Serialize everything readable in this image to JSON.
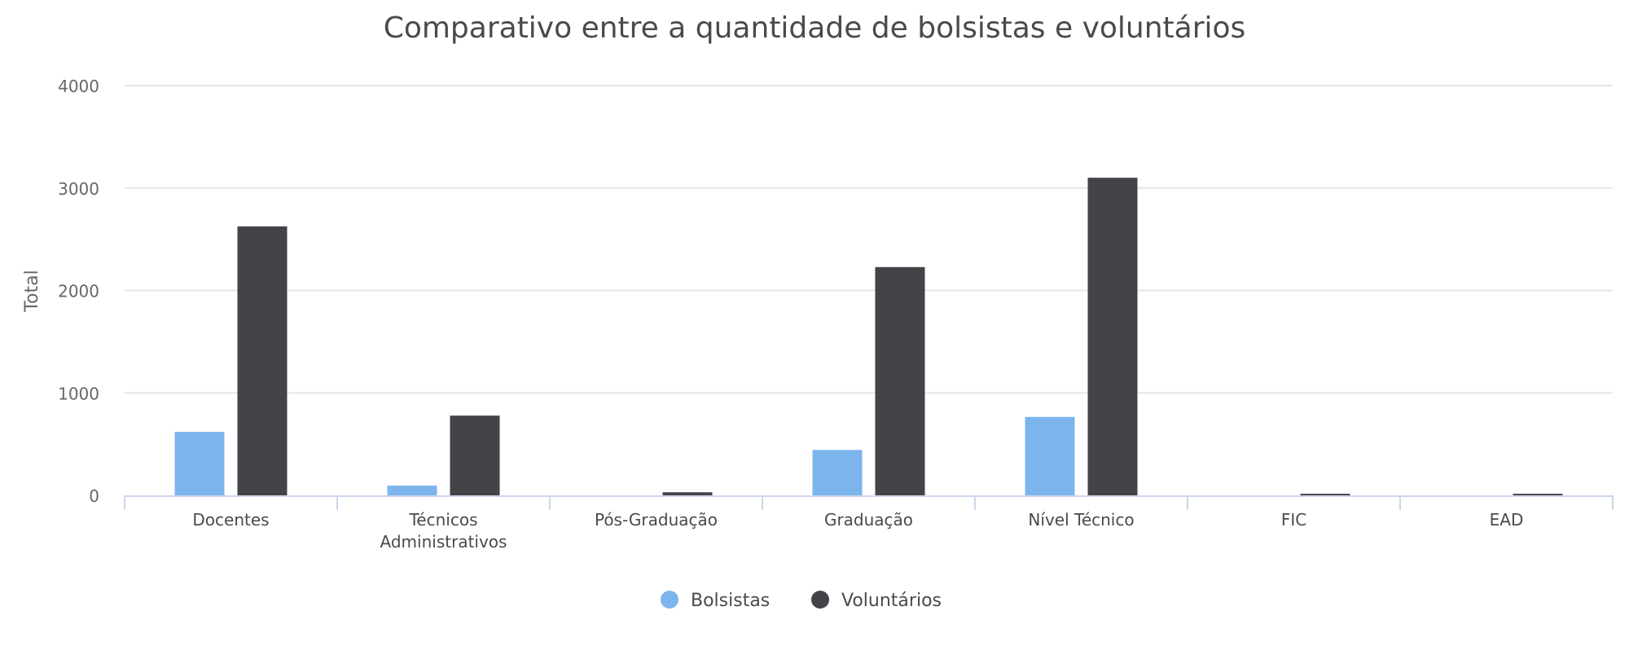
{
  "chart_data": {
    "type": "bar",
    "title": "Comparativo entre a quantidade de bolsistas e voluntários",
    "xlabel": "",
    "ylabel": "Total",
    "ylim": [
      0,
      4000
    ],
    "yticks": [
      0,
      1000,
      2000,
      3000,
      4000
    ],
    "grid": true,
    "legend_position": "bottom",
    "categories": [
      "Docentes",
      "Técnicos Administrativos",
      "Pós-Graduação",
      "Graduação",
      "Nível Técnico",
      "FIC",
      "EAD"
    ],
    "category_lines": [
      [
        "Docentes"
      ],
      [
        "Técnicos",
        "Administrativos"
      ],
      [
        "Pós-Graduação"
      ],
      [
        "Graduação"
      ],
      [
        "Nível Técnico"
      ],
      [
        "FIC"
      ],
      [
        "EAD"
      ]
    ],
    "series": [
      {
        "name": "Bolsistas",
        "color": "#7cb5ec",
        "values": [
          620,
          95,
          0,
          443,
          765,
          0,
          0
        ]
      },
      {
        "name": "Voluntários",
        "color": "#434348",
        "values": [
          2625,
          778,
          30,
          2228,
          3100,
          15,
          15
        ]
      }
    ]
  }
}
